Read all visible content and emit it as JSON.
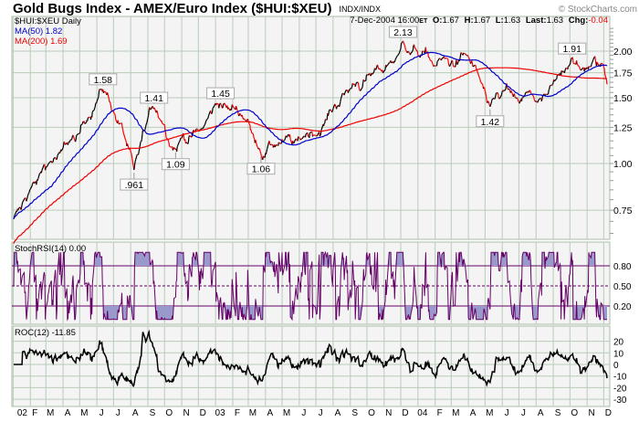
{
  "header": {
    "title": "Gold Bugs Index - AMEX/Euro Index ($HUI:$XEU)",
    "exchange": "INDX/INDX",
    "copyright": "© StockCharts.com",
    "symbol_period": "$HUI:$XEU Daily",
    "ma50_label": "MA(50) 1.82",
    "ma200_label": "MA(200) 1.69",
    "date": "7-Dec-2004 16:00",
    "tz": "ET",
    "o_label": "O:",
    "o_value": "1.67",
    "h_label": "H:",
    "h_value": "1.67",
    "l_label": "L:",
    "l_value": "1.63",
    "last_label": "Last:",
    "last_value": "1.63",
    "chg_label": "Chg:",
    "chg_value": "-0.04"
  },
  "colors": {
    "up": "#000000",
    "down": "#ff0000",
    "ma50": "#0000cc",
    "ma200": "#ee0000",
    "stoch_line": "#660066",
    "stoch_fill": "#9999cc",
    "roc_line": "#000000",
    "grid": "#b8ccb8",
    "panel_bg": "#f4f4f4",
    "chg_negative": "#ff0000"
  },
  "chart_data": [
    {
      "type": "line",
      "title": "Gold Bugs Index - AMEX/Euro Index ($HUI:$XEU)",
      "scale": "log",
      "ylim": [
        0.62,
        2.35
      ],
      "yticks": [
        "2.00",
        "1.75",
        "1.50",
        "1.25",
        "1.00",
        "0.75"
      ],
      "ytick_values": [
        2.0,
        1.75,
        1.5,
        1.25,
        1.0,
        0.75
      ],
      "grid": true,
      "overlays": [
        "MA(50)",
        "MA(200)"
      ],
      "close_series": [
        [
          "2002-01-02",
          0.71
        ],
        [
          "2002-01-16",
          0.76
        ],
        [
          "2002-01-31",
          0.85
        ],
        [
          "2002-02-14",
          0.9
        ],
        [
          "2002-02-28",
          0.96
        ],
        [
          "2002-03-15",
          1.03
        ],
        [
          "2002-03-29",
          1.08
        ],
        [
          "2002-04-15",
          1.16
        ],
        [
          "2002-04-30",
          1.2
        ],
        [
          "2002-05-15",
          1.3
        ],
        [
          "2002-05-31",
          1.45
        ],
        [
          "2002-06-12",
          1.58
        ],
        [
          "2002-06-28",
          1.38
        ],
        [
          "2002-07-15",
          1.28
        ],
        [
          "2002-07-31",
          1.1
        ],
        [
          "2002-08-07",
          0.961
        ],
        [
          "2002-08-22",
          1.2
        ],
        [
          "2002-09-12",
          1.41
        ],
        [
          "2002-09-27",
          1.28
        ],
        [
          "2002-10-08",
          1.15
        ],
        [
          "2002-10-21",
          1.09
        ],
        [
          "2002-11-05",
          1.17
        ],
        [
          "2002-11-20",
          1.2
        ],
        [
          "2002-12-06",
          1.24
        ],
        [
          "2002-12-20",
          1.35
        ],
        [
          "2003-01-10",
          1.45
        ],
        [
          "2003-01-28",
          1.4
        ],
        [
          "2003-02-12",
          1.34
        ],
        [
          "2003-02-27",
          1.3
        ],
        [
          "2003-03-10",
          1.2
        ],
        [
          "2003-03-24",
          1.06
        ],
        [
          "2003-04-10",
          1.12
        ],
        [
          "2003-04-28",
          1.13
        ],
        [
          "2003-05-14",
          1.18
        ],
        [
          "2003-05-29",
          1.15
        ],
        [
          "2003-06-13",
          1.2
        ],
        [
          "2003-06-30",
          1.19
        ],
        [
          "2003-07-15",
          1.26
        ],
        [
          "2003-07-31",
          1.38
        ],
        [
          "2003-08-14",
          1.46
        ],
        [
          "2003-08-29",
          1.56
        ],
        [
          "2003-09-15",
          1.65
        ],
        [
          "2003-09-30",
          1.72
        ],
        [
          "2003-10-15",
          1.8
        ],
        [
          "2003-10-31",
          1.76
        ],
        [
          "2003-11-14",
          1.86
        ],
        [
          "2003-11-28",
          1.97
        ],
        [
          "2003-12-05",
          2.13
        ],
        [
          "2003-12-19",
          1.97
        ],
        [
          "2004-01-09",
          2.0
        ],
        [
          "2004-01-27",
          1.86
        ],
        [
          "2004-02-12",
          1.89
        ],
        [
          "2004-02-27",
          1.82
        ],
        [
          "2004-03-15",
          1.9
        ],
        [
          "2004-03-31",
          1.95
        ],
        [
          "2004-04-15",
          1.8
        ],
        [
          "2004-04-29",
          1.6
        ],
        [
          "2004-05-10",
          1.42
        ],
        [
          "2004-05-25",
          1.52
        ],
        [
          "2004-06-11",
          1.58
        ],
        [
          "2004-06-28",
          1.5
        ],
        [
          "2004-07-14",
          1.55
        ],
        [
          "2004-07-29",
          1.48
        ],
        [
          "2004-08-13",
          1.52
        ],
        [
          "2004-08-30",
          1.62
        ],
        [
          "2004-09-15",
          1.72
        ],
        [
          "2004-09-29",
          1.82
        ],
        [
          "2004-10-05",
          1.91
        ],
        [
          "2004-10-20",
          1.78
        ],
        [
          "2004-11-04",
          1.82
        ],
        [
          "2004-11-19",
          1.87
        ],
        [
          "2004-11-30",
          1.84
        ],
        [
          "2004-12-07",
          1.63
        ]
      ],
      "annotations": [
        {
          "date": "2002-06-12",
          "value": 1.58,
          "text": "1.58",
          "position": "above"
        },
        {
          "date": "2002-08-07",
          "value": 0.961,
          "text": ".961",
          "position": "below"
        },
        {
          "date": "2002-09-12",
          "value": 1.41,
          "text": "1.41",
          "position": "above"
        },
        {
          "date": "2002-10-21",
          "value": 1.09,
          "text": "1.09",
          "position": "below"
        },
        {
          "date": "2003-01-10",
          "value": 1.45,
          "text": "1.45",
          "position": "above"
        },
        {
          "date": "2003-03-24",
          "value": 1.06,
          "text": "1.06",
          "position": "below"
        },
        {
          "date": "2003-12-05",
          "value": 2.13,
          "text": "2.13",
          "position": "above"
        },
        {
          "date": "2004-05-10",
          "value": 1.42,
          "text": "1.42",
          "position": "below"
        },
        {
          "date": "2004-10-05",
          "value": 1.91,
          "text": "1.91",
          "position": "above"
        }
      ]
    },
    {
      "type": "line",
      "title": "StochRSI(14) 0.00",
      "ylim": [
        0,
        1
      ],
      "yticks": [
        "0.80",
        "0.50",
        "0.20"
      ],
      "ytick_values": [
        0.8,
        0.5,
        0.2
      ]
    },
    {
      "type": "line",
      "title": "ROC(12) -11.85",
      "ylim": [
        -35,
        30
      ],
      "yticks": [
        "20",
        "10",
        "0",
        "-10",
        "-20",
        "-30"
      ],
      "ytick_values": [
        20,
        10,
        0,
        -10,
        -20,
        -30
      ]
    }
  ],
  "x_axis": {
    "months": [
      [
        "2002-01",
        "02"
      ],
      [
        "2002-02",
        "F"
      ],
      [
        "2002-03",
        "M"
      ],
      [
        "2002-04",
        "A"
      ],
      [
        "2002-05",
        "M"
      ],
      [
        "2002-06",
        "J"
      ],
      [
        "2002-07",
        "J"
      ],
      [
        "2002-08",
        "A"
      ],
      [
        "2002-09",
        "S"
      ],
      [
        "2002-10",
        "O"
      ],
      [
        "2002-11",
        "N"
      ],
      [
        "2002-12",
        "D"
      ],
      [
        "2003-01",
        "03"
      ],
      [
        "2003-02",
        "F"
      ],
      [
        "2003-03",
        "M"
      ],
      [
        "2003-04",
        "A"
      ],
      [
        "2003-05",
        "M"
      ],
      [
        "2003-06",
        "J"
      ],
      [
        "2003-07",
        "J"
      ],
      [
        "2003-08",
        "A"
      ],
      [
        "2003-09",
        "S"
      ],
      [
        "2003-10",
        "O"
      ],
      [
        "2003-11",
        "N"
      ],
      [
        "2003-12",
        "D"
      ],
      [
        "2004-01",
        "04"
      ],
      [
        "2004-02",
        "F"
      ],
      [
        "2004-03",
        "M"
      ],
      [
        "2004-04",
        "A"
      ],
      [
        "2004-05",
        "M"
      ],
      [
        "2004-06",
        "J"
      ],
      [
        "2004-07",
        "J"
      ],
      [
        "2004-08",
        "A"
      ],
      [
        "2004-09",
        "S"
      ],
      [
        "2004-10",
        "O"
      ],
      [
        "2004-11",
        "N"
      ],
      [
        "2004-12",
        "D"
      ]
    ]
  }
}
